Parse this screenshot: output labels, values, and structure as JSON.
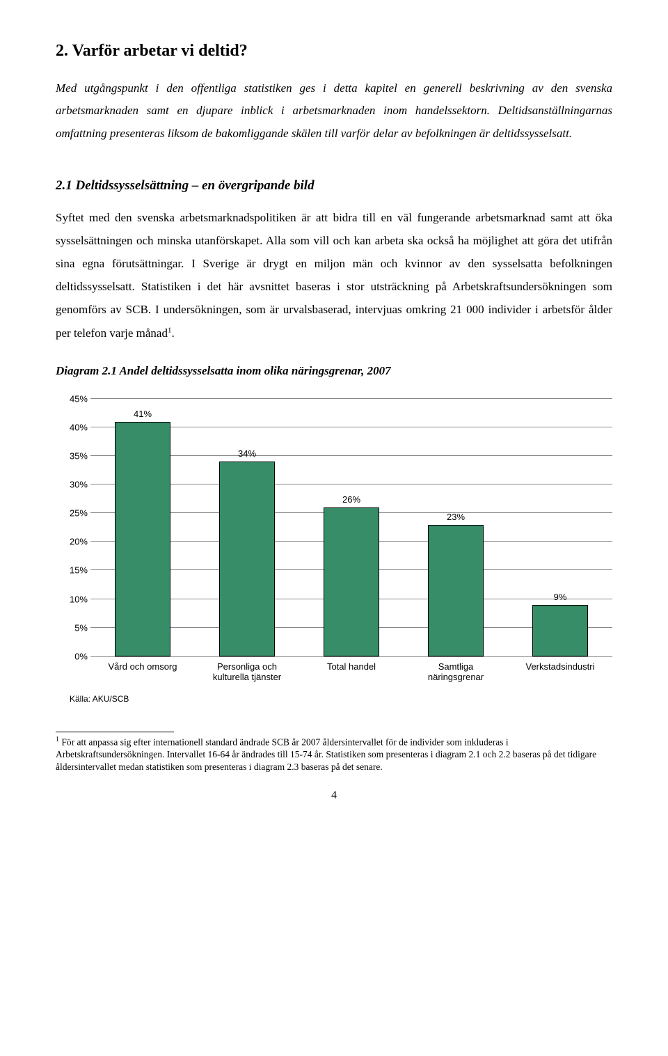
{
  "heading": "2. Varför arbetar vi deltid?",
  "intro": "Med utgångspunkt i den offentliga statistiken ges i detta kapitel en generell beskrivning av den svenska arbetsmarknaden samt en djupare inblick i arbetsmarknaden inom handelssektorn. Deltidsanställningarnas omfattning presenteras liksom de bakomliggande skälen till varför delar av befolkningen är deltidssysselsatt.",
  "subheading": "2.1 Deltidssysselsättning – en övergripande bild",
  "body_pre_sup": "Syftet med den svenska arbetsmarknadspolitiken är att bidra till en väl fungerande arbetsmarknad samt att öka sysselsättningen och minska utanförskapet. Alla som vill och kan arbeta ska också ha möjlighet att göra det utifrån sina egna förutsättningar. I Sverige är drygt en miljon män och kvinnor av den sysselsatta befolkningen deltidssysselsatt. Statistiken i det här avsnittet baseras i stor utsträckning på Arbetskraftsundersökningen som genomförs av SCB. I undersökningen, som är urvalsbaserad, intervjuas omkring 21 000 individer i arbetsför ålder per telefon varje månad",
  "body_sup": "1",
  "body_post_sup": ".",
  "diagram_title": "Diagram 2.1 Andel deltidssysselsatta inom olika näringsgrenar, 2007",
  "chart": {
    "type": "bar",
    "y_max": 45,
    "y_ticks": [
      0,
      5,
      10,
      15,
      20,
      25,
      30,
      35,
      40,
      45
    ],
    "bar_color": "#378d67",
    "bar_border": "#000000",
    "grid_color": "#888888",
    "background": "#ffffff",
    "label_fontsize": 13,
    "font_family": "Arial",
    "categories": [
      "Vård och omsorg",
      "Personliga och kulturella tjänster",
      "Total handel",
      "Samtliga näringsgrenar",
      "Verkstadsindustri"
    ],
    "values": [
      41,
      34,
      26,
      23,
      9
    ],
    "value_labels": [
      "41%",
      "34%",
      "26%",
      "23%",
      "9%"
    ]
  },
  "source": "Källa: AKU/SCB",
  "footnote_sup": "1",
  "footnote": " För att anpassa sig efter internationell standard ändrade SCB år 2007 åldersintervallet för de individer som inkluderas i Arbetskraftsundersökningen. Intervallet 16-64 år ändrades till 15-74 år. Statistiken som presenteras i diagram 2.1 och 2.2 baseras på det tidigare åldersintervallet medan statistiken som presenteras i diagram 2.3 baseras på det senare.",
  "page_number": "4"
}
